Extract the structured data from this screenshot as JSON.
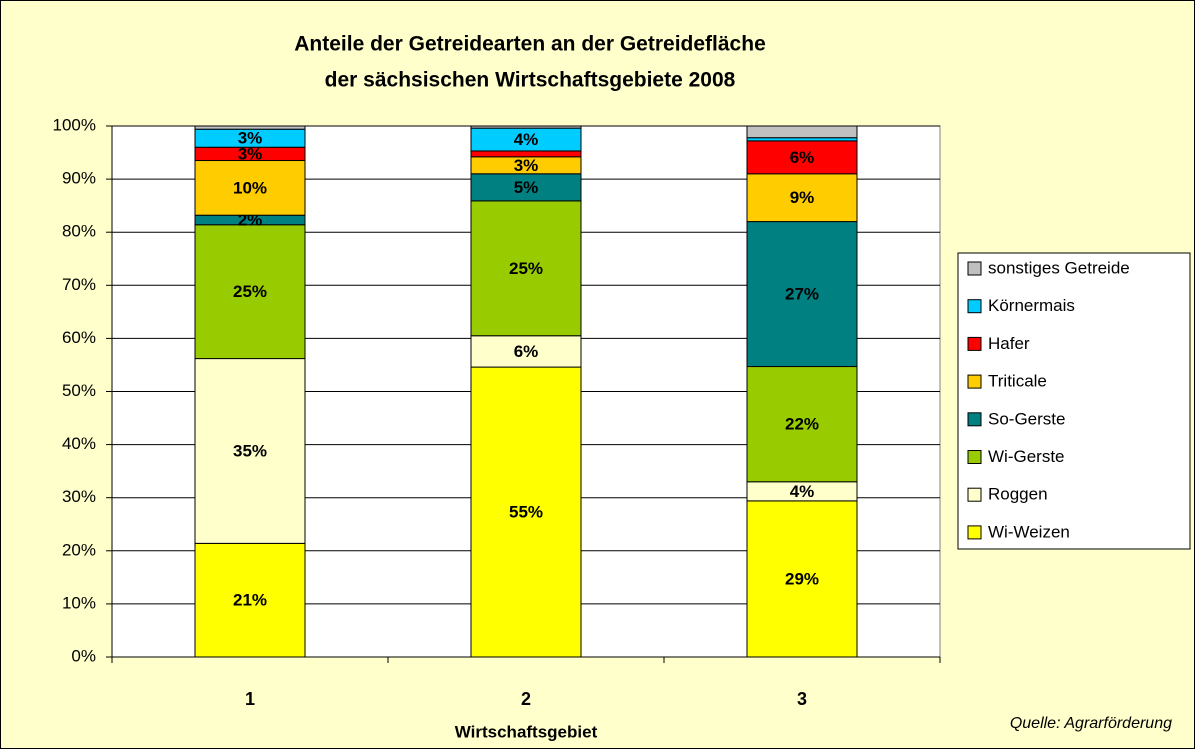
{
  "chart_data": {
    "type": "stacked_bar",
    "title": "Anteile der Getreidearten an der Getreidefläche",
    "subtitle": "der sächsischen Wirtschaftsgebiete 2008",
    "x_label": "Wirtschaftsgebiet",
    "source": "Quelle: Agrarförderung",
    "categories": [
      "1",
      "2",
      "3"
    ],
    "ylim": [
      0,
      100
    ],
    "yticks": [
      {
        "value": 0,
        "label": "0%"
      },
      {
        "value": 10,
        "label": "10%"
      },
      {
        "value": 20,
        "label": "20%"
      },
      {
        "value": 30,
        "label": "30%"
      },
      {
        "value": 40,
        "label": "40%"
      },
      {
        "value": 50,
        "label": "50%"
      },
      {
        "value": 60,
        "label": "60%"
      },
      {
        "value": 70,
        "label": "70%"
      },
      {
        "value": 80,
        "label": "80%"
      },
      {
        "value": 90,
        "label": "90%"
      },
      {
        "value": 100,
        "label": "100%"
      }
    ],
    "grid": true,
    "legend": "right",
    "series": [
      {
        "name": "Wi-Weizen",
        "color": "#ffff00",
        "values": [
          21.4,
          54.6,
          29.4
        ],
        "value_labels": [
          "21%",
          "55%",
          "29%"
        ]
      },
      {
        "name": "Roggen",
        "color": "#ffffcc",
        "values": [
          34.8,
          5.9,
          3.6
        ],
        "value_labels": [
          "35%",
          "6%",
          "4%"
        ]
      },
      {
        "name": "Wi-Gerste",
        "color": "#99cc00",
        "values": [
          25.2,
          25.4,
          21.7
        ],
        "value_labels": [
          "25%",
          "25%",
          "22%"
        ]
      },
      {
        "name": "So-Gerste",
        "color": "#008080",
        "values": [
          1.8,
          5.1,
          27.3
        ],
        "value_labels": [
          "2%",
          "5%",
          "27%"
        ]
      },
      {
        "name": "Triticale",
        "color": "#ffcc00",
        "values": [
          10.3,
          3.2,
          9.0
        ],
        "value_labels": [
          "10%",
          "3%",
          "9%"
        ]
      },
      {
        "name": "Hafer",
        "color": "#ff0000",
        "values": [
          2.5,
          1.1,
          6.2
        ],
        "value_labels": [
          "3%",
          null,
          "6%"
        ]
      },
      {
        "name": "Körnermais",
        "color": "#00ccff",
        "values": [
          3.4,
          4.3,
          0.6
        ],
        "value_labels": [
          "3%",
          "4%",
          null
        ]
      },
      {
        "name": "sonstiges Getreide",
        "color": "#c0c0c0",
        "values": [
          0.6,
          0.4,
          2.2
        ],
        "value_labels": [
          null,
          null,
          null
        ]
      }
    ]
  }
}
